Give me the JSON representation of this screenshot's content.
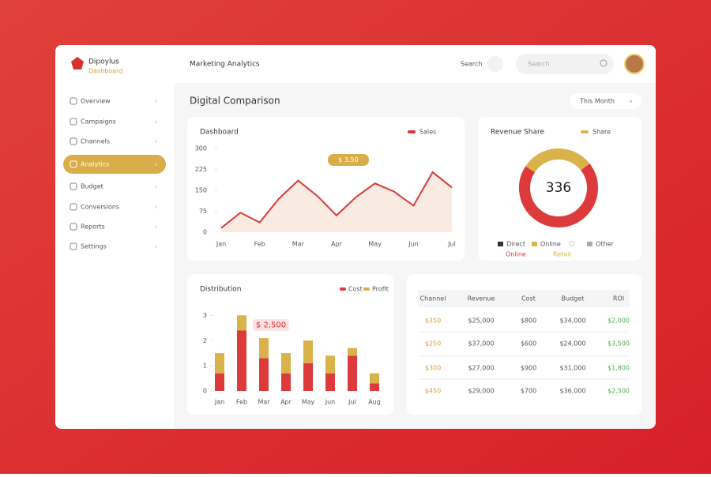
{
  "sidebar": {
    "brand": "Dipoylus",
    "brand_sub": "Dashboard",
    "items": [
      "Overview",
      "Campaigns",
      "Channels",
      "Analytics",
      "Budget",
      "Conversions",
      "Reports",
      "Settings"
    ],
    "active": 3
  },
  "header": {
    "title": "Marketing Analytics",
    "search_label": "Search",
    "search_placeholder": "Search"
  },
  "section": {
    "title": "Digital Comparison",
    "dropdown": "This Month"
  },
  "line_chart": {
    "type": "line",
    "title": "Dashboard",
    "legend": "Sales",
    "color": "#d93a3a",
    "fill": "#f7e3d6",
    "categories": [
      "Jan",
      null,
      "Feb",
      null,
      "Mar",
      null,
      "Apr",
      null,
      "May",
      null,
      "Jun",
      null,
      "Jul"
    ],
    "values": [
      15,
      70,
      35,
      120,
      185,
      130,
      60,
      125,
      175,
      145,
      95,
      215,
      160
    ],
    "ylim": [
      0,
      300
    ],
    "yticks": [
      0,
      75,
      150,
      225,
      300
    ],
    "annotation": "$ 3.50"
  },
  "donut": {
    "type": "pie",
    "title": "Revenue Share",
    "legend": "Share",
    "center_label": "336",
    "segments": [
      {
        "name": "Online",
        "value": 70,
        "color": "#dd3b3b"
      },
      {
        "name": "Retail",
        "value": 30,
        "color": "#d9b24c"
      }
    ],
    "legend_items": [
      {
        "name": "Direct",
        "color": "#333333"
      },
      {
        "name": "Online",
        "color": "#d9b24c"
      },
      {
        "name": "Other",
        "color": "#aaaaaa"
      }
    ]
  },
  "bar_chart": {
    "type": "bar",
    "title": "Distribution",
    "categories": [
      "Jan",
      "Feb",
      "Mar",
      "Apr",
      "May",
      "Jun",
      "Jul",
      "Aug"
    ],
    "series": [
      {
        "name": "Cost",
        "color": "#dd3b3b",
        "values": [
          0.7,
          2.4,
          1.3,
          0.7,
          1.1,
          0.7,
          1.4,
          0.3
        ]
      },
      {
        "name": "Profit",
        "color": "#d9b24c",
        "values": [
          0.8,
          0.6,
          0.8,
          0.8,
          0.9,
          0.7,
          0.3,
          0.4
        ]
      }
    ],
    "ylim": [
      0,
      3.2
    ],
    "yticks": [
      0,
      1,
      2,
      3
    ],
    "annotation": "$ 2,500"
  },
  "table": {
    "columns": [
      "Channel",
      "Revenue",
      "Cost",
      "Budget",
      "ROI"
    ],
    "rows": [
      [
        "$350",
        "$25,000",
        "$800",
        "$34,000",
        "$2,000"
      ],
      [
        "$250",
        "$37,000",
        "$600",
        "$24,000",
        "$3,500"
      ],
      [
        "$300",
        "$27,000",
        "$900",
        "$31,000",
        "$1,800"
      ],
      [
        "$450",
        "$29,000",
        "$700",
        "$36,000",
        "$2,500"
      ]
    ]
  }
}
